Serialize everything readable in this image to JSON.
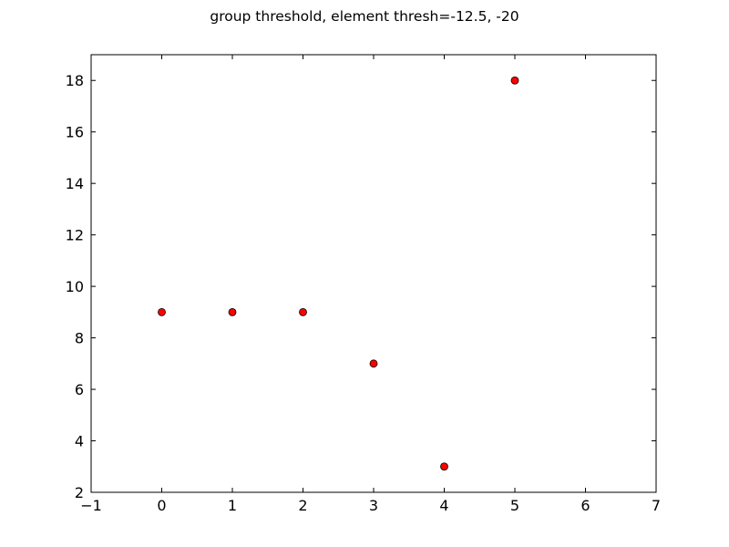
{
  "chart_data": {
    "type": "scatter",
    "title": "group threshold, element thresh=-12.5, -20",
    "xlabel": "",
    "ylabel": "",
    "xlim": [
      -1,
      7
    ],
    "ylim": [
      2,
      19
    ],
    "xticks": [
      -1,
      0,
      1,
      2,
      3,
      4,
      5,
      6,
      7
    ],
    "yticks": [
      2,
      4,
      6,
      8,
      10,
      12,
      14,
      16,
      18
    ],
    "xtick_labels": [
      "−1",
      "0",
      "1",
      "2",
      "3",
      "4",
      "5",
      "6",
      "7"
    ],
    "ytick_labels": [
      "2",
      "4",
      "6",
      "8",
      "10",
      "12",
      "14",
      "16",
      "18"
    ],
    "grid": false,
    "series": [
      {
        "x": [
          0,
          1,
          2,
          3,
          4,
          5
        ],
        "y": [
          9,
          9,
          9,
          7,
          3,
          18
        ],
        "color": "#ff0000",
        "marker": "circle"
      }
    ]
  }
}
